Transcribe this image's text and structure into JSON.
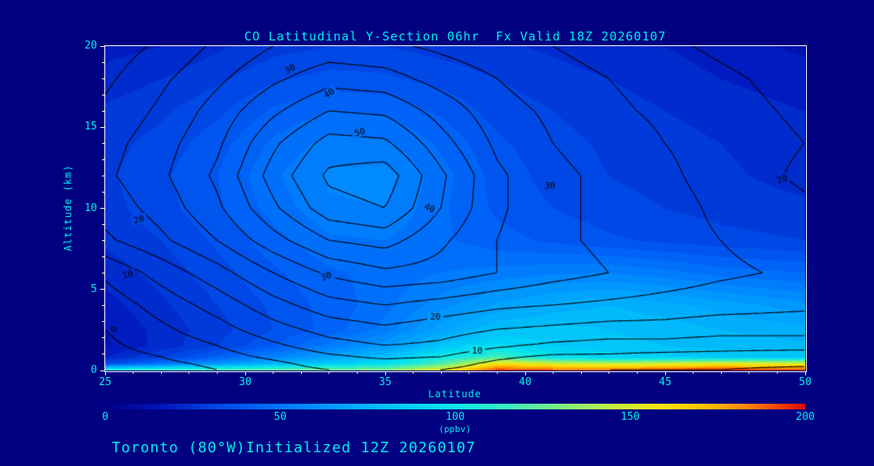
{
  "title": "CO Latitudinal Y-Section 06hr  Fx Valid 18Z 20260107",
  "footer": "Toronto (80°W)Initialized 12Z 20260107",
  "colors": {
    "background": "#000080",
    "text": "#00ecec",
    "axis_frame": "#ffffff",
    "contour_line": "#000000"
  },
  "chart_data": {
    "type": "heatmap",
    "subtype": "filled-contour-latitude-altitude-cross-section",
    "title": "CO Latitudinal Y-Section 06hr  Fx Valid 18Z 20260107",
    "xlabel": "Latitude",
    "ylabel": "Altitude (km)",
    "xlim": [
      25,
      50
    ],
    "ylim": [
      0,
      20
    ],
    "x_ticks": [
      25,
      30,
      35,
      40,
      45,
      50
    ],
    "y_ticks": [
      0,
      5,
      10,
      15,
      20
    ],
    "colorbar": {
      "min": 0,
      "max": 200,
      "ticks": [
        0,
        50,
        100,
        150,
        200
      ],
      "label": "(ppbv)"
    },
    "colormap_stops": [
      [
        0,
        [
          0,
          0,
          130
        ]
      ],
      [
        15,
        [
          0,
          20,
          185
        ]
      ],
      [
        30,
        [
          0,
          65,
          225
        ]
      ],
      [
        45,
        [
          0,
          105,
          250
        ]
      ],
      [
        60,
        [
          0,
          145,
          255
        ]
      ],
      [
        75,
        [
          0,
          180,
          252
        ]
      ],
      [
        90,
        [
          0,
          215,
          245
        ]
      ],
      [
        100,
        [
          10,
          232,
          232
        ]
      ],
      [
        115,
        [
          60,
          235,
          190
        ]
      ],
      [
        130,
        [
          125,
          240,
          125
        ]
      ],
      [
        145,
        [
          195,
          240,
          65
        ]
      ],
      [
        160,
        [
          250,
          228,
          10
        ]
      ],
      [
        172,
        [
          255,
          190,
          0
        ]
      ],
      [
        183,
        [
          255,
          135,
          0
        ]
      ],
      [
        192,
        [
          252,
          70,
          0
        ]
      ],
      [
        200,
        [
          220,
          10,
          0
        ]
      ]
    ],
    "fill_band_step": 5,
    "fill": {
      "lats": [
        25,
        27,
        29,
        31,
        33,
        35,
        37,
        39,
        41,
        43,
        45,
        47,
        50
      ],
      "alts": [
        0,
        0.4,
        0.8,
        1.5,
        2.5,
        4,
        6,
        8,
        10,
        12,
        14,
        16,
        18,
        20
      ],
      "values": [
        [
          110,
          115,
          120,
          125,
          128,
          132,
          155,
          195,
          190,
          185,
          195,
          198,
          190
        ],
        [
          35,
          48,
          62,
          75,
          85,
          95,
          120,
          160,
          150,
          145,
          150,
          155,
          150
        ],
        [
          20,
          30,
          42,
          55,
          68,
          80,
          100,
          118,
          95,
          88,
          86,
          85,
          84
        ],
        [
          14,
          22,
          30,
          40,
          52,
          64,
          82,
          92,
          85,
          82,
          80,
          78,
          76
        ],
        [
          15,
          22,
          28,
          35,
          42,
          52,
          68,
          80,
          82,
          80,
          78,
          75,
          72
        ],
        [
          18,
          24,
          30,
          36,
          42,
          48,
          58,
          66,
          72,
          75,
          72,
          68,
          62
        ],
        [
          22,
          27,
          33,
          39,
          44,
          47,
          50,
          52,
          54,
          55,
          52,
          48,
          45
        ],
        [
          26,
          30,
          36,
          43,
          49,
          50,
          46,
          42,
          39,
          36,
          34,
          32,
          30
        ],
        [
          28,
          33,
          39,
          47,
          54,
          55,
          46,
          39,
          35,
          32,
          30,
          28,
          26
        ],
        [
          29,
          34,
          40,
          49,
          56,
          57,
          47,
          38,
          33,
          30,
          28,
          26,
          23
        ],
        [
          28,
          32,
          38,
          46,
          52,
          51,
          44,
          36,
          32,
          29,
          27,
          25,
          22
        ],
        [
          26,
          29,
          34,
          41,
          45,
          44,
          39,
          33,
          30,
          27,
          25,
          23,
          20
        ],
        [
          22,
          25,
          29,
          34,
          37,
          36,
          33,
          30,
          27,
          25,
          23,
          20,
          17
        ],
        [
          18,
          20,
          24,
          28,
          30,
          30,
          28,
          26,
          24,
          22,
          20,
          17,
          14
        ]
      ]
    },
    "contours": {
      "levels": [
        5,
        10,
        15,
        20,
        25,
        30,
        35,
        40,
        45,
        50,
        55
      ],
      "lats": [
        25,
        27,
        29,
        31,
        33,
        35,
        37,
        39,
        41,
        43,
        45,
        47,
        50
      ],
      "alts": [
        0,
        0.4,
        0.8,
        1.5,
        2.5,
        4,
        6,
        8,
        10,
        12,
        14,
        16,
        18,
        20
      ],
      "values": [
        [
          1,
          3,
          5,
          8,
          10,
          11,
          10,
          8,
          6,
          5,
          5,
          5,
          4
        ],
        [
          2,
          4,
          6,
          9,
          12,
          13,
          12,
          9,
          7,
          7,
          6,
          6,
          6
        ],
        [
          3,
          5,
          8,
          11,
          14,
          16,
          15,
          11,
          9,
          9,
          8,
          8,
          7
        ],
        [
          4,
          7,
          10,
          14,
          18,
          20,
          19,
          16,
          14,
          13,
          13,
          12,
          12
        ],
        [
          5,
          9,
          13,
          18,
          22,
          24,
          22,
          20,
          19,
          18,
          18,
          17,
          17
        ],
        [
          7,
          12,
          17,
          23,
          28,
          30,
          28,
          26,
          25,
          24,
          23,
          22,
          21
        ],
        [
          11,
          17,
          23,
          30,
          36,
          39,
          38,
          35,
          32,
          30,
          28,
          26,
          24
        ],
        [
          19,
          24,
          30,
          38,
          45,
          47,
          41,
          35,
          31,
          29,
          27,
          25,
          22
        ],
        [
          22,
          27,
          34,
          44,
          53,
          55,
          45,
          36,
          31,
          29,
          27,
          24,
          21
        ],
        [
          24,
          29,
          36,
          47,
          56,
          58,
          46,
          36,
          31,
          29,
          26,
          23,
          19
        ],
        [
          23,
          28,
          34,
          44,
          52,
          51,
          42,
          34,
          30,
          28,
          25,
          23,
          20
        ],
        [
          21,
          26,
          32,
          39,
          45,
          44,
          38,
          32,
          29,
          26,
          24,
          22,
          19
        ],
        [
          19,
          24,
          29,
          34,
          38,
          37,
          33,
          30,
          27,
          25,
          23,
          21,
          18
        ],
        [
          17,
          21,
          26,
          30,
          32,
          31,
          29,
          27,
          25,
          23,
          21,
          19,
          16
        ]
      ]
    },
    "contour_labels": [
      {
        "text": "30",
        "lat": 31.6,
        "alt": 18.6,
        "rot": -30
      },
      {
        "text": "40",
        "lat": 33.0,
        "alt": 17.1,
        "rot": -35
      },
      {
        "text": "50",
        "lat": 34.1,
        "alt": 14.7,
        "rot": -15
      },
      {
        "text": "40",
        "lat": 36.6,
        "alt": 10.0,
        "rot": 25
      },
      {
        "text": "30",
        "lat": 40.9,
        "alt": 11.4,
        "rot": 0
      },
      {
        "text": "20",
        "lat": 49.2,
        "alt": 11.8,
        "rot": -20
      },
      {
        "text": "20",
        "lat": 26.2,
        "alt": 9.3,
        "rot": -15
      },
      {
        "text": "10",
        "lat": 25.8,
        "alt": 5.9,
        "rot": -15
      },
      {
        "text": "30",
        "lat": 32.9,
        "alt": 5.8,
        "rot": -20
      },
      {
        "text": "20",
        "lat": 36.8,
        "alt": 3.3,
        "rot": 0
      },
      {
        "text": "10",
        "lat": 38.3,
        "alt": 1.2,
        "rot": 0
      },
      {
        "text": "0",
        "lat": 25.3,
        "alt": 2.5,
        "rot": -55
      }
    ]
  }
}
